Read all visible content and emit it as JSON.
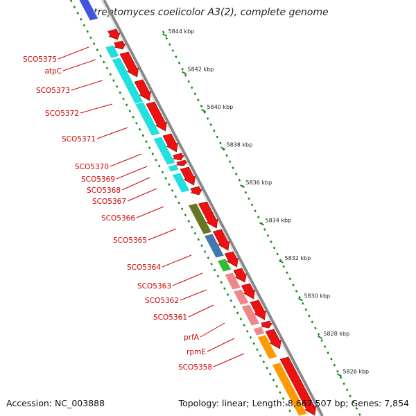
{
  "title": "Streptomyces coelicolor A3(2), complete genome",
  "footer": {
    "accession": "Accession: NC_003888",
    "summary": "Topology: linear; Length: 8,667,507 bp; Genes: 7,854"
  },
  "scale_ticks": [
    "5844 kbp",
    "5842 kbp",
    "5840 kbp",
    "5838 kbp",
    "5836 kbp",
    "5834 kbp",
    "5832 kbp",
    "5830 kbp",
    "5828 kbp",
    "5826 kbp"
  ],
  "gene_labels": [
    "SCO5375",
    "atpC",
    "SCO5373",
    "SCO5372",
    "SCO5371",
    "SCO5370",
    "SCO5369",
    "SCO5368",
    "SCO5367",
    "SCO5366",
    "SCO5365",
    "SCO5364",
    "SCO5363",
    "SCO5362",
    "SCO5361",
    "prfA",
    "rpmE",
    "SCO5358"
  ],
  "colors": {
    "cds": "#ee1111",
    "backbone": "#888888",
    "dots": "#1a8a1a",
    "label": "#cc0000"
  }
}
